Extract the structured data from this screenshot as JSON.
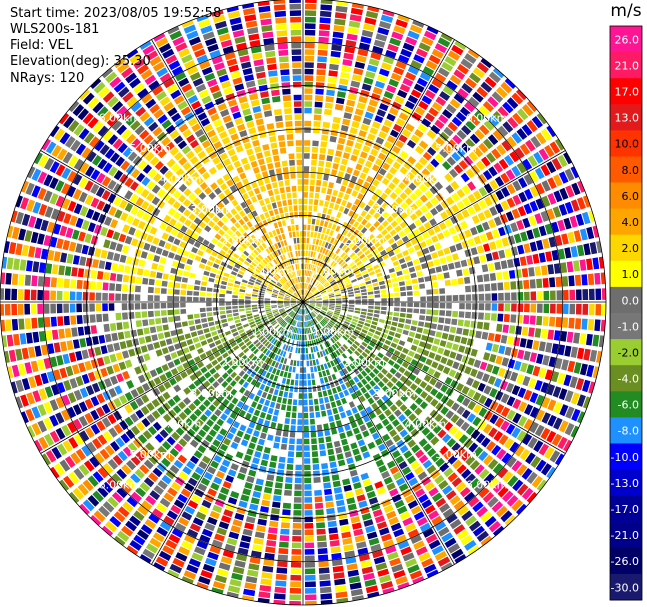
{
  "header": {
    "start_time": "Start time: 2023/08/05 19:52:58",
    "station": "WLS200s-181",
    "field": "Field: VEL",
    "elevation": "Elevation(deg): 35.30",
    "nrays": "NRays: 120"
  },
  "chart_data": {
    "type": "heatmap",
    "subtype": "radar-ppi",
    "field": "VEL",
    "units": "m/s",
    "n_rays": 120,
    "elevation_deg": 35.3,
    "max_range_km": 7.0,
    "range_rings_km": [
      1.0,
      2.0,
      3.0,
      4.0,
      5.0,
      6.0,
      7.0
    ],
    "radial_lines_deg": [
      0,
      30,
      60,
      90,
      120,
      150,
      180,
      210,
      240,
      270,
      300,
      330
    ],
    "ring_labels": [
      "1.00km",
      "2.00km",
      "3.00km",
      "4.00km",
      "5.00km",
      "6.00km"
    ],
    "qualitative_pattern": {
      "north_half_m_s": [
        0.0,
        6.0
      ],
      "south_half_m_s": [
        -8.0,
        0.0
      ],
      "beyond_5km": "noisy / random values"
    },
    "colorbar": {
      "label": "m/s",
      "tick_labels": [
        "26.0",
        "21.0",
        "17.0",
        "13.0",
        "10.0",
        "8.0",
        "6.0",
        "4.0",
        "2.0",
        "1.0",
        "0.0",
        "-1.0",
        "-2.0",
        "-4.0",
        "-6.0",
        "-8.0",
        "-10.0",
        "-13.0",
        "-17.0",
        "-21.0",
        "-26.0",
        "-30.0"
      ],
      "colors": [
        "#ff1493",
        "#ff1a66",
        "#ff0000",
        "#e31a1c",
        "#ff3300",
        "#ff5a00",
        "#ff8c00",
        "#ffa500",
        "#ffd700",
        "#ffff00",
        "#6e6e6e",
        "#777777",
        "#9acd32",
        "#6b8e23",
        "#228b22",
        "#1e90ff",
        "#0000ff",
        "#0000cd",
        "#000099",
        "#00008b",
        "#000066",
        "#191970"
      ]
    }
  }
}
